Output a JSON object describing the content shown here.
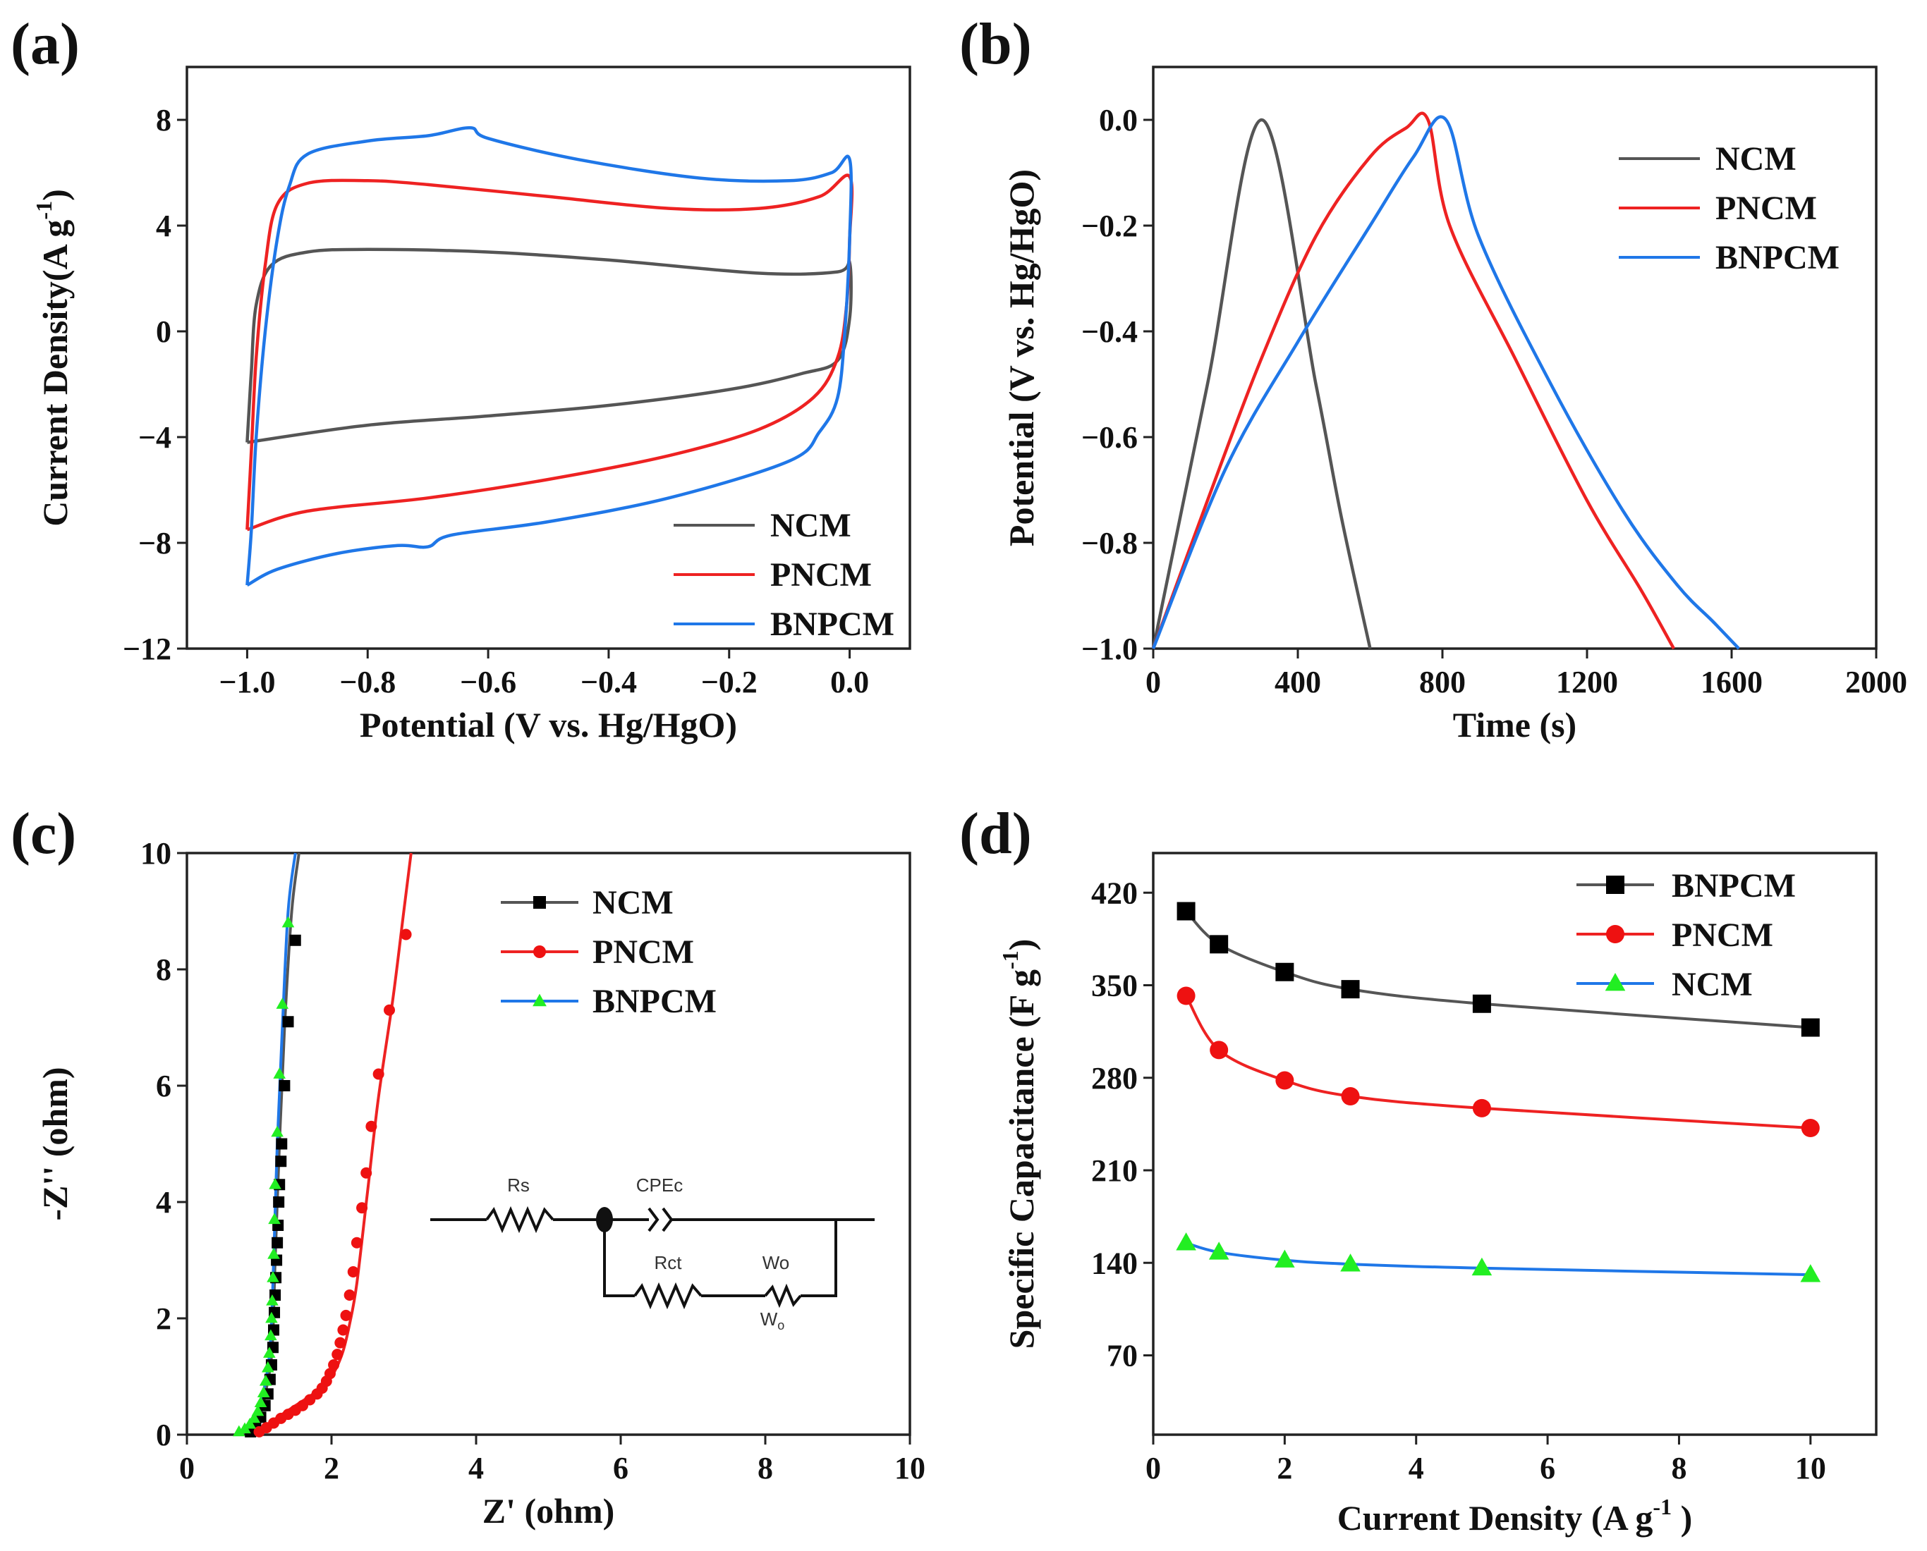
{
  "colors": {
    "NCM": "#555555",
    "PNCM": "#ee2222",
    "BNPCM": "#1f77e8"
  },
  "chart_data": [
    {
      "panel": "(a)",
      "type": "line",
      "xlabel": "Potential (V vs. Hg/HgO)",
      "ylabel_main": "Current Density(A g",
      "ylabel_sup": "-1",
      "ylabel_end": ")",
      "xlim": [
        -1.1,
        0.1
      ],
      "ylim": [
        -12,
        10
      ],
      "xticks": [
        -1.0,
        -0.8,
        -0.6,
        -0.4,
        -0.2,
        0.0
      ],
      "xtick_labels": [
        "−1.0",
        "−0.8",
        "−0.6",
        "−0.4",
        "−0.2",
        "0.0"
      ],
      "yticks": [
        -12,
        -8,
        -4,
        0,
        4,
        8
      ],
      "ytick_labels": [
        "−12",
        "−8",
        "−4",
        "0",
        "4",
        "8"
      ],
      "legend_position": "bottom-right",
      "series": [
        {
          "name": "NCM",
          "color_key": "NCM",
          "marker": "none",
          "points": [
            [
              -1.0,
              -4.2
            ],
            [
              -0.8,
              -3.55
            ],
            [
              -0.6,
              -3.2
            ],
            [
              -0.4,
              -2.8
            ],
            [
              -0.2,
              -2.2
            ],
            [
              -0.08,
              -1.6
            ],
            [
              -0.02,
              -1.1
            ],
            [
              0.0,
              0.5
            ],
            [
              0.0,
              2.6
            ],
            [
              -0.02,
              2.25
            ],
            [
              -0.15,
              2.2
            ],
            [
              -0.4,
              2.7
            ],
            [
              -0.6,
              3.0
            ],
            [
              -0.8,
              3.1
            ],
            [
              -0.9,
              3.0
            ],
            [
              -0.96,
              2.5
            ],
            [
              -0.985,
              1.0
            ],
            [
              -0.993,
              -1.5
            ],
            [
              -0.997,
              -3.0
            ],
            [
              -1.0,
              -4.2
            ]
          ]
        },
        {
          "name": "PNCM",
          "color_key": "PNCM",
          "marker": "none",
          "points": [
            [
              -1.0,
              -7.5
            ],
            [
              -0.9,
              -6.8
            ],
            [
              -0.7,
              -6.3
            ],
            [
              -0.5,
              -5.6
            ],
            [
              -0.3,
              -4.7
            ],
            [
              -0.15,
              -3.7
            ],
            [
              -0.06,
              -2.5
            ],
            [
              -0.02,
              -1.0
            ],
            [
              -0.005,
              1.0
            ],
            [
              0.0,
              3.5
            ],
            [
              0.0,
              5.85
            ],
            [
              -0.05,
              5.1
            ],
            [
              -0.15,
              4.65
            ],
            [
              -0.3,
              4.65
            ],
            [
              -0.5,
              5.1
            ],
            [
              -0.7,
              5.55
            ],
            [
              -0.8,
              5.7
            ],
            [
              -0.9,
              5.6
            ],
            [
              -0.95,
              4.8
            ],
            [
              -0.97,
              2.5
            ],
            [
              -0.985,
              -1.0
            ],
            [
              -0.993,
              -4.5
            ],
            [
              -1.0,
              -7.5
            ]
          ]
        },
        {
          "name": "BNPCM",
          "color_key": "BNPCM",
          "marker": "none",
          "points": [
            [
              -1.0,
              -9.6
            ],
            [
              -0.95,
              -9.0
            ],
            [
              -0.85,
              -8.4
            ],
            [
              -0.75,
              -8.1
            ],
            [
              -0.7,
              -8.15
            ],
            [
              -0.66,
              -7.7
            ],
            [
              -0.5,
              -7.2
            ],
            [
              -0.3,
              -6.3
            ],
            [
              -0.1,
              -4.9
            ],
            [
              -0.05,
              -3.8
            ],
            [
              -0.02,
              -2.5
            ],
            [
              -0.008,
              0.0
            ],
            [
              0.0,
              3.5
            ],
            [
              0.0,
              6.5
            ],
            [
              -0.03,
              6.0
            ],
            [
              -0.1,
              5.7
            ],
            [
              -0.25,
              5.8
            ],
            [
              -0.45,
              6.5
            ],
            [
              -0.6,
              7.3
            ],
            [
              -0.63,
              7.7
            ],
            [
              -0.7,
              7.4
            ],
            [
              -0.8,
              7.2
            ],
            [
              -0.9,
              6.7
            ],
            [
              -0.93,
              5.5
            ],
            [
              -0.95,
              3.5
            ],
            [
              -0.97,
              0.0
            ],
            [
              -0.985,
              -4.0
            ],
            [
              -0.993,
              -7.5
            ],
            [
              -1.0,
              -9.6
            ]
          ]
        }
      ]
    },
    {
      "panel": "(b)",
      "type": "line",
      "xlabel": "Time (s)",
      "ylabel_main": "Potential (V vs. Hg/HgO)",
      "xlim": [
        0,
        2000
      ],
      "ylim": [
        -1.0,
        0.1
      ],
      "xticks": [
        0,
        400,
        800,
        1200,
        1600,
        2000
      ],
      "xtick_labels": [
        "0",
        "400",
        "800",
        "1200",
        "1600",
        "2000"
      ],
      "yticks": [
        -1.0,
        -0.8,
        -0.6,
        -0.4,
        -0.2,
        0.0
      ],
      "ytick_labels": [
        "−1.0",
        "−0.8",
        "−0.6",
        "−0.4",
        "−0.2",
        "0.0"
      ],
      "legend_position": "top-right",
      "series": [
        {
          "name": "NCM",
          "color_key": "NCM",
          "marker": "none",
          "points": [
            [
              0,
              -1.0
            ],
            [
              150,
              -0.5
            ],
            [
              300,
              0.0
            ],
            [
              450,
              -0.5
            ],
            [
              520,
              -0.75
            ],
            [
              600,
              -1.0
            ]
          ]
        },
        {
          "name": "PNCM",
          "color_key": "PNCM",
          "marker": "none",
          "points": [
            [
              0,
              -1.0
            ],
            [
              150,
              -0.72
            ],
            [
              300,
              -0.45
            ],
            [
              450,
              -0.22
            ],
            [
              600,
              -0.07
            ],
            [
              700,
              -0.015
            ],
            [
              760,
              0.0
            ],
            [
              820,
              -0.2
            ],
            [
              1000,
              -0.45
            ],
            [
              1200,
              -0.72
            ],
            [
              1350,
              -0.89
            ],
            [
              1440,
              -1.0
            ]
          ]
        },
        {
          "name": "BNPCM",
          "color_key": "BNPCM",
          "marker": "none",
          "points": [
            [
              0,
              -1.0
            ],
            [
              200,
              -0.66
            ],
            [
              400,
              -0.42
            ],
            [
              600,
              -0.2
            ],
            [
              720,
              -0.07
            ],
            [
              810,
              0.0
            ],
            [
              900,
              -0.22
            ],
            [
              1100,
              -0.5
            ],
            [
              1300,
              -0.74
            ],
            [
              1450,
              -0.88
            ],
            [
              1550,
              -0.95
            ],
            [
              1620,
              -1.0
            ]
          ]
        }
      ]
    },
    {
      "panel": "(c)",
      "type": "scatter",
      "xlabel": "Z' (ohm)",
      "ylabel_main": "-Z'' (ohm)",
      "xlim": [
        0,
        10
      ],
      "ylim": [
        0,
        10
      ],
      "xticks": [
        0,
        2,
        4,
        6,
        8,
        10
      ],
      "xtick_labels": [
        "0",
        "2",
        "4",
        "6",
        "8",
        "10"
      ],
      "yticks": [
        0,
        2,
        4,
        6,
        8,
        10
      ],
      "ytick_labels": [
        "0",
        "2",
        "4",
        "6",
        "8",
        "10"
      ],
      "legend_position": "top-right",
      "inset_circuit": {
        "labels": [
          "Rs",
          "CPEc",
          "Rct",
          "Wo"
        ],
        "wo_symbol": "W",
        "wo_sub": "o"
      },
      "series": [
        {
          "name": "NCM",
          "color_key": "NCM",
          "marker": "square",
          "line": [
            [
              0.85,
              0.0
            ],
            [
              1.0,
              0.3
            ],
            [
              1.1,
              0.8
            ],
            [
              1.18,
              1.5
            ],
            [
              1.22,
              3.0
            ],
            [
              1.28,
              5.0
            ],
            [
              1.35,
              7.0
            ],
            [
              1.45,
              9.0
            ],
            [
              1.55,
              10.0
            ]
          ],
          "points": [
            [
              0.88,
              0.05
            ],
            [
              0.95,
              0.15
            ],
            [
              1.02,
              0.3
            ],
            [
              1.08,
              0.5
            ],
            [
              1.12,
              0.7
            ],
            [
              1.15,
              0.95
            ],
            [
              1.17,
              1.2
            ],
            [
              1.19,
              1.5
            ],
            [
              1.2,
              1.8
            ],
            [
              1.21,
              2.1
            ],
            [
              1.22,
              2.4
            ],
            [
              1.23,
              2.7
            ],
            [
              1.24,
              3.0
            ],
            [
              1.25,
              3.3
            ],
            [
              1.26,
              3.6
            ],
            [
              1.27,
              4.0
            ],
            [
              1.28,
              4.3
            ],
            [
              1.3,
              4.7
            ],
            [
              1.31,
              5.0
            ],
            [
              1.35,
              6.0
            ],
            [
              1.4,
              7.1
            ],
            [
              1.5,
              8.5
            ]
          ]
        },
        {
          "name": "PNCM",
          "color_key": "PNCM",
          "marker": "circle",
          "line": [
            [
              0.95,
              0.0
            ],
            [
              1.2,
              0.25
            ],
            [
              1.5,
              0.5
            ],
            [
              1.8,
              0.75
            ],
            [
              2.0,
              1.0
            ],
            [
              2.15,
              1.4
            ],
            [
              2.25,
              1.9
            ],
            [
              2.35,
              2.6
            ],
            [
              2.5,
              4.2
            ],
            [
              2.65,
              5.8
            ],
            [
              2.85,
              7.5
            ],
            [
              3.0,
              9.0
            ],
            [
              3.1,
              10.0
            ]
          ],
          "points": [
            [
              1.0,
              0.05
            ],
            [
              1.1,
              0.12
            ],
            [
              1.2,
              0.2
            ],
            [
              1.3,
              0.28
            ],
            [
              1.4,
              0.35
            ],
            [
              1.5,
              0.42
            ],
            [
              1.6,
              0.5
            ],
            [
              1.7,
              0.6
            ],
            [
              1.8,
              0.7
            ],
            [
              1.87,
              0.8
            ],
            [
              1.93,
              0.92
            ],
            [
              1.98,
              1.05
            ],
            [
              2.03,
              1.2
            ],
            [
              2.08,
              1.38
            ],
            [
              2.12,
              1.58
            ],
            [
              2.16,
              1.8
            ],
            [
              2.2,
              2.05
            ],
            [
              2.25,
              2.4
            ],
            [
              2.3,
              2.8
            ],
            [
              2.35,
              3.3
            ],
            [
              2.42,
              3.9
            ],
            [
              2.48,
              4.5
            ],
            [
              2.55,
              5.3
            ],
            [
              2.65,
              6.2
            ],
            [
              2.8,
              7.3
            ],
            [
              3.03,
              8.6
            ]
          ]
        },
        {
          "name": "BNPCM",
          "color_key": "BNPCM",
          "marker": "triangle",
          "line": [
            [
              0.7,
              0.0
            ],
            [
              0.9,
              0.2
            ],
            [
              1.05,
              0.7
            ],
            [
              1.15,
              1.5
            ],
            [
              1.2,
              3.0
            ],
            [
              1.25,
              5.0
            ],
            [
              1.32,
              7.0
            ],
            [
              1.4,
              9.0
            ],
            [
              1.5,
              10.0
            ]
          ],
          "points": [
            [
              0.72,
              0.05
            ],
            [
              0.8,
              0.1
            ],
            [
              0.87,
              0.18
            ],
            [
              0.93,
              0.28
            ],
            [
              0.98,
              0.4
            ],
            [
              1.02,
              0.55
            ],
            [
              1.06,
              0.72
            ],
            [
              1.09,
              0.92
            ],
            [
              1.12,
              1.15
            ],
            [
              1.14,
              1.4
            ],
            [
              1.16,
              1.7
            ],
            [
              1.17,
              2.0
            ],
            [
              1.18,
              2.3
            ],
            [
              1.19,
              2.7
            ],
            [
              1.2,
              3.1
            ],
            [
              1.21,
              3.7
            ],
            [
              1.22,
              4.3
            ],
            [
              1.25,
              5.2
            ],
            [
              1.28,
              6.2
            ],
            [
              1.32,
              7.4
            ],
            [
              1.4,
              8.8
            ]
          ]
        }
      ]
    },
    {
      "panel": "(d)",
      "type": "line",
      "xlabel_main": "Current Density (A g",
      "xlabel_sup": "-1",
      "xlabel_end": " )",
      "ylabel_main": "Specific Capacitance (F g",
      "ylabel_sup": "-1",
      "ylabel_end": ")",
      "xlim": [
        0,
        11
      ],
      "ylim": [
        10,
        450
      ],
      "xticks": [
        0,
        2,
        4,
        6,
        8,
        10
      ],
      "xtick_labels": [
        "0",
        "2",
        "4",
        "6",
        "8",
        "10"
      ],
      "yticks": [
        70,
        140,
        210,
        280,
        350,
        420
      ],
      "ytick_labels": [
        "70",
        "140",
        "210",
        "280",
        "350",
        "420"
      ],
      "legend_position": "top-right",
      "series": [
        {
          "name": "BNPCM",
          "color_key": "NCM",
          "marker": "square",
          "x": [
            0.5,
            1,
            2,
            3,
            5,
            10
          ],
          "values": [
            406,
            381,
            360,
            347,
            336,
            318
          ]
        },
        {
          "name": "PNCM",
          "color_key": "PNCM",
          "marker": "circle",
          "x": [
            0.5,
            1,
            2,
            3,
            5,
            10
          ],
          "values": [
            342,
            301,
            278,
            266,
            257,
            242
          ]
        },
        {
          "name": "NCM",
          "color_key": "BNPCM",
          "marker": "triangle",
          "x": [
            0.5,
            1,
            2,
            3,
            5,
            10
          ],
          "values": [
            155,
            148,
            142,
            139,
            136,
            131
          ],
          "marker_color": "#22ee22"
        }
      ]
    }
  ]
}
